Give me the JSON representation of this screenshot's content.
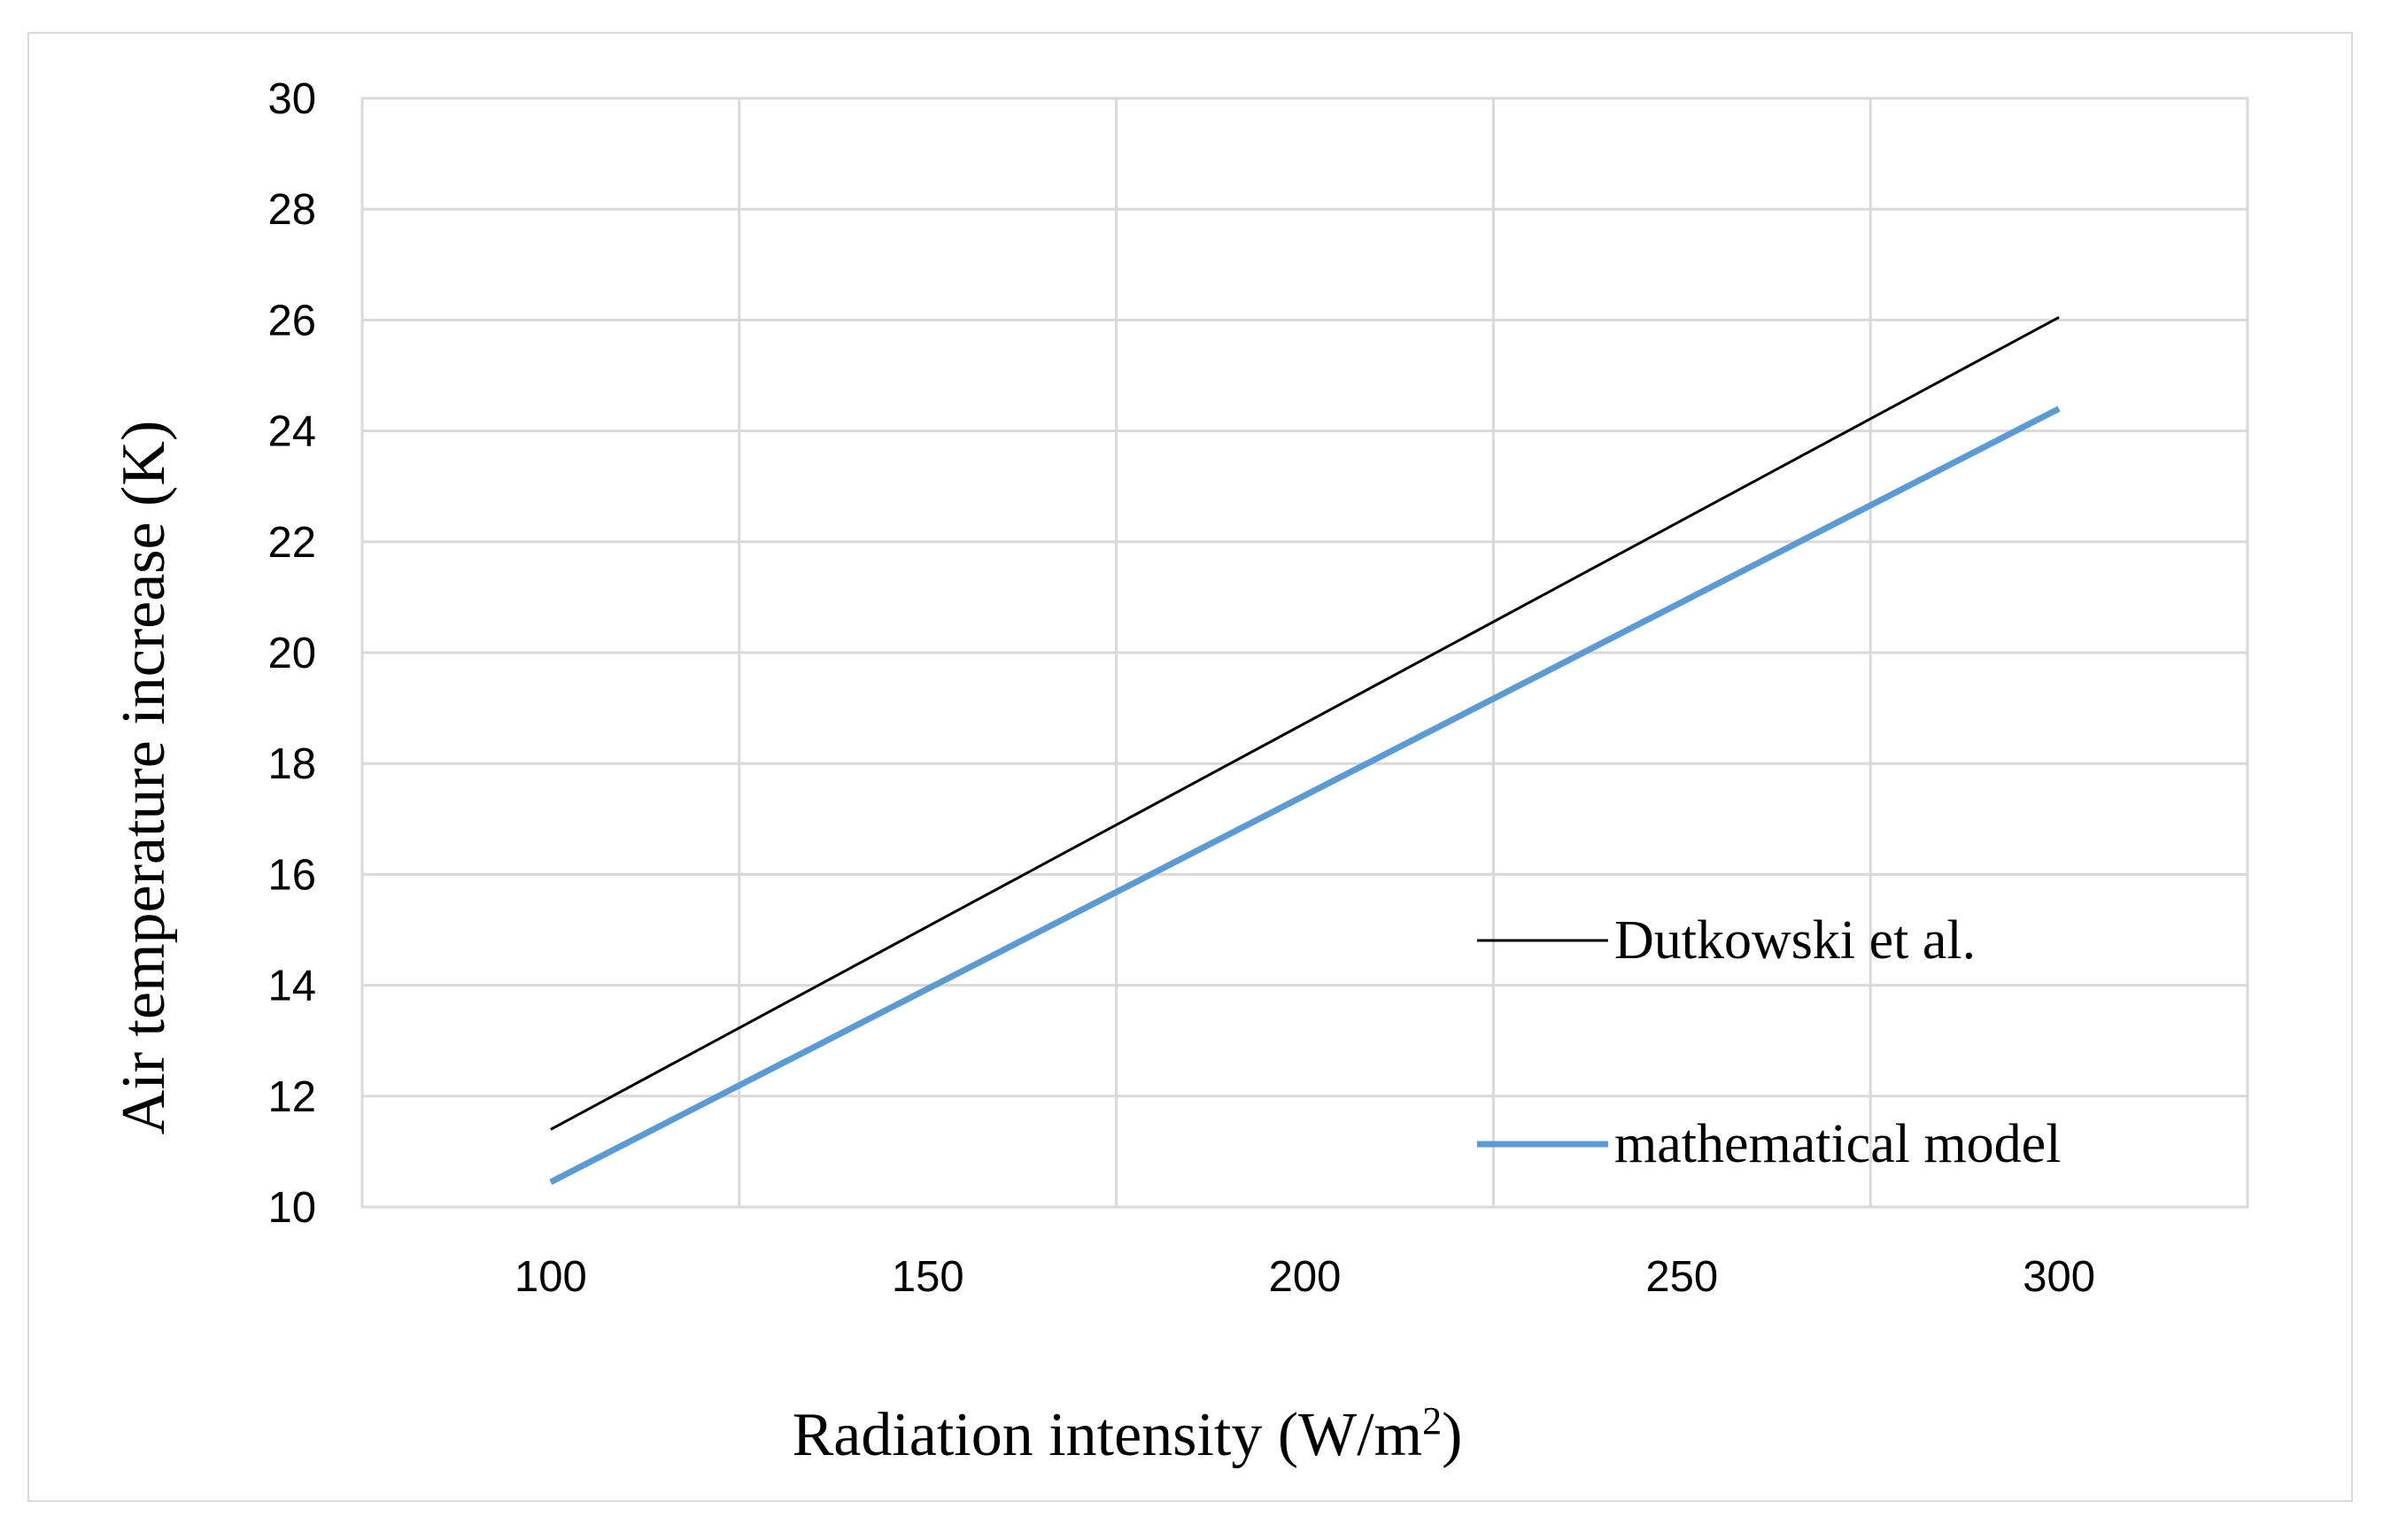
{
  "chart_data": {
    "type": "line",
    "title": "",
    "xlabel": "Radiation intensity (W/m",
    "xlabel_superscript": "2",
    "xlabel_close": ")",
    "ylabel": "Air temperature increase (K)",
    "xlim": [
      75,
      325
    ],
    "ylim": [
      10,
      30
    ],
    "xticks": [
      "100",
      "150",
      "200",
      "250",
      "300"
    ],
    "xtick_values": [
      100,
      150,
      200,
      250,
      300
    ],
    "yticks": [
      "10",
      "12",
      "14",
      "16",
      "18",
      "20",
      "22",
      "24",
      "26",
      "28",
      "30"
    ],
    "ytick_values": [
      10,
      12,
      14,
      16,
      18,
      20,
      22,
      24,
      26,
      28,
      30
    ],
    "x_grid_values": [
      75,
      125,
      175,
      225,
      275,
      325
    ],
    "grid": true,
    "legend_position": "bottom-right",
    "series": [
      {
        "name": "Dutkowski et al.",
        "color": "#000000",
        "x": [
          100,
          300
        ],
        "y": [
          11.4,
          26.05
        ]
      },
      {
        "name": "mathematical model",
        "color": "#5b9bd5",
        "x": [
          100,
          300
        ],
        "y": [
          10.45,
          24.4
        ]
      }
    ]
  }
}
